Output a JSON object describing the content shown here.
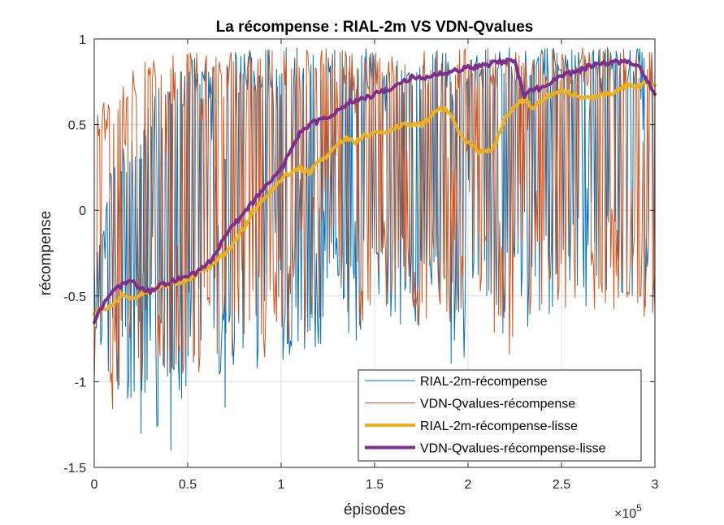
{
  "chart_data": {
    "type": "line",
    "title": "La récompense : RIAL-2m VS VDN-Qvalues",
    "xlabel": "épisodes",
    "ylabel": "récompense",
    "x_multiplier": "×10",
    "x_multiplier_exp": "5",
    "xlim": [
      0,
      3
    ],
    "ylim": [
      -1.5,
      1
    ],
    "xticks": [
      "0",
      "0.5",
      "1",
      "1.5",
      "2",
      "2.5",
      "3"
    ],
    "yticks": [
      "-1.5",
      "-1",
      "-0.5",
      "0",
      "0.5",
      "1"
    ],
    "grid": true,
    "legend_position": "bottom-right",
    "series": [
      {
        "name": "RIAL-2m-récompense",
        "color": "#0072BD",
        "width": 1,
        "x": [
          0,
          0.1,
          0.2,
          0.3,
          0.4,
          0.5,
          0.6,
          0.7,
          0.8,
          0.9,
          1.0,
          1.1,
          1.2,
          1.3,
          1.4,
          1.5,
          1.6,
          1.7,
          1.8,
          1.9,
          2.0,
          2.1,
          2.2,
          2.3,
          2.4,
          2.5,
          2.6,
          2.7,
          2.8,
          2.9,
          3.0
        ],
        "low": [
          -0.7,
          -1.1,
          -1.2,
          -1.25,
          -1.3,
          -1.0,
          -0.9,
          -1.0,
          -1.0,
          -0.95,
          -0.9,
          -0.85,
          -0.8,
          -0.75,
          -0.8,
          -0.7,
          -0.7,
          -0.75,
          -0.6,
          -0.9,
          -0.95,
          -0.6,
          -0.75,
          -0.7,
          -0.65,
          -0.6,
          -0.55,
          -0.6,
          -0.5,
          -0.55,
          -0.6
        ],
        "high": [
          -0.3,
          0.3,
          0.5,
          0.7,
          0.8,
          0.9,
          0.92,
          0.93,
          0.95,
          0.95,
          0.95,
          0.95,
          0.95,
          0.95,
          0.95,
          0.95,
          0.95,
          0.95,
          0.95,
          0.95,
          0.95,
          0.95,
          0.95,
          0.95,
          0.95,
          0.95,
          0.95,
          0.95,
          0.95,
          0.95,
          0.93
        ],
        "min_points": [
          [
            0.41,
            -1.4
          ],
          [
            0.7,
            -1.15
          ],
          [
            0.25,
            -1.3
          ]
        ]
      },
      {
        "name": "VDN-Qvalues-récompense",
        "color": "#D95319",
        "width": 1,
        "x": [
          0,
          0.1,
          0.2,
          0.3,
          0.4,
          0.5,
          0.6,
          0.7,
          0.8,
          0.9,
          1.0,
          1.1,
          1.2,
          1.3,
          1.4,
          1.5,
          1.6,
          1.7,
          1.8,
          1.9,
          2.0,
          2.1,
          2.2,
          2.3,
          2.4,
          2.5,
          2.6,
          2.7,
          2.8,
          2.9,
          3.0
        ],
        "low": [
          -1.1,
          -1.2,
          -1.1,
          -1.0,
          -1.0,
          -0.95,
          -0.95,
          -0.9,
          -0.85,
          -0.9,
          -0.85,
          -0.8,
          -0.8,
          -0.75,
          -0.75,
          -0.7,
          -0.7,
          -0.75,
          -0.7,
          -0.7,
          -0.65,
          -0.6,
          -0.9,
          -0.75,
          -0.7,
          -0.7,
          -0.65,
          -0.6,
          -0.6,
          -0.65,
          -0.7
        ],
        "high": [
          0.6,
          0.75,
          0.85,
          0.9,
          0.9,
          0.92,
          0.92,
          0.93,
          0.93,
          0.94,
          0.94,
          0.94,
          0.95,
          0.95,
          0.95,
          0.95,
          0.95,
          0.95,
          0.95,
          0.95,
          0.95,
          0.95,
          0.95,
          0.95,
          0.95,
          0.95,
          0.95,
          0.95,
          0.95,
          0.95,
          0.94
        ]
      },
      {
        "name": "RIAL-2m-récompense-lisse",
        "color": "#EDB120",
        "width": 4,
        "x": [
          0,
          0.05,
          0.1,
          0.15,
          0.2,
          0.25,
          0.3,
          0.35,
          0.4,
          0.45,
          0.5,
          0.55,
          0.6,
          0.65,
          0.7,
          0.75,
          0.8,
          0.85,
          0.9,
          0.95,
          1.0,
          1.05,
          1.1,
          1.15,
          1.2,
          1.25,
          1.3,
          1.35,
          1.4,
          1.45,
          1.5,
          1.55,
          1.6,
          1.65,
          1.7,
          1.75,
          1.8,
          1.85,
          1.9,
          1.95,
          2.0,
          2.05,
          2.1,
          2.15,
          2.2,
          2.25,
          2.3,
          2.35,
          2.4,
          2.45,
          2.5,
          2.55,
          2.6,
          2.65,
          2.7,
          2.75,
          2.8,
          2.85,
          2.9,
          2.95,
          3.0
        ],
        "y": [
          -0.6,
          -0.57,
          -0.55,
          -0.5,
          -0.52,
          -0.48,
          -0.47,
          -0.45,
          -0.43,
          -0.42,
          -0.4,
          -0.37,
          -0.35,
          -0.3,
          -0.25,
          -0.18,
          -0.1,
          0.0,
          0.05,
          0.12,
          0.18,
          0.22,
          0.25,
          0.22,
          0.28,
          0.32,
          0.38,
          0.42,
          0.4,
          0.44,
          0.45,
          0.46,
          0.48,
          0.5,
          0.5,
          0.5,
          0.55,
          0.6,
          0.58,
          0.45,
          0.4,
          0.35,
          0.33,
          0.4,
          0.55,
          0.6,
          0.65,
          0.6,
          0.65,
          0.68,
          0.7,
          0.68,
          0.67,
          0.65,
          0.67,
          0.68,
          0.7,
          0.73,
          0.72,
          0.74,
          0.72
        ]
      },
      {
        "name": "VDN-Qvalues-récompense-lisse",
        "color": "#7E2F8E",
        "width": 4,
        "x": [
          0,
          0.05,
          0.1,
          0.15,
          0.2,
          0.25,
          0.3,
          0.35,
          0.4,
          0.45,
          0.5,
          0.55,
          0.6,
          0.65,
          0.7,
          0.75,
          0.8,
          0.85,
          0.9,
          0.95,
          1.0,
          1.05,
          1.1,
          1.15,
          1.2,
          1.25,
          1.3,
          1.35,
          1.4,
          1.45,
          1.5,
          1.55,
          1.6,
          1.65,
          1.7,
          1.75,
          1.8,
          1.85,
          1.9,
          1.95,
          2.0,
          2.05,
          2.1,
          2.15,
          2.2,
          2.25,
          2.3,
          2.35,
          2.4,
          2.45,
          2.5,
          2.55,
          2.6,
          2.65,
          2.7,
          2.75,
          2.8,
          2.85,
          2.9,
          2.95,
          3.0
        ],
        "y": [
          -0.65,
          -0.55,
          -0.48,
          -0.43,
          -0.42,
          -0.45,
          -0.47,
          -0.44,
          -0.42,
          -0.4,
          -0.38,
          -0.36,
          -0.32,
          -0.25,
          -0.15,
          -0.08,
          -0.02,
          0.05,
          0.12,
          0.18,
          0.24,
          0.35,
          0.45,
          0.5,
          0.52,
          0.55,
          0.58,
          0.62,
          0.65,
          0.65,
          0.68,
          0.7,
          0.72,
          0.75,
          0.78,
          0.77,
          0.78,
          0.8,
          0.8,
          0.82,
          0.83,
          0.84,
          0.85,
          0.86,
          0.87,
          0.86,
          0.67,
          0.7,
          0.72,
          0.75,
          0.78,
          0.8,
          0.82,
          0.84,
          0.85,
          0.86,
          0.87,
          0.86,
          0.85,
          0.78,
          0.68
        ]
      }
    ]
  }
}
